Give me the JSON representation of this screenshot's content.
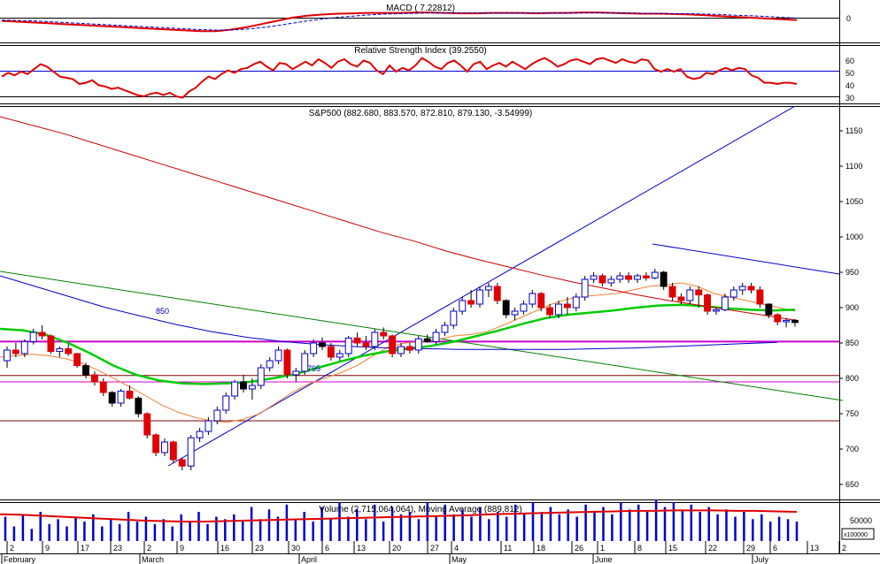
{
  "chart_data": [
    {
      "type": "line",
      "title": "MACD ( 7.22812)",
      "y_ticks": [
        "0"
      ],
      "series": [
        {
          "name": "MACD",
          "color": "#e00000",
          "values": [
            -8,
            -10,
            -12,
            -14,
            -16,
            -18,
            -20,
            -22,
            -24,
            -26,
            -28,
            -30,
            -32,
            -34,
            -34,
            -30,
            -24,
            -16,
            -8,
            0,
            5,
            8,
            10,
            11,
            12,
            12,
            12,
            13,
            13,
            12,
            11,
            11,
            12,
            12,
            12,
            11,
            12,
            12,
            13,
            13,
            12,
            11,
            10,
            10,
            9,
            8,
            6,
            4,
            2,
            0,
            -2,
            -4,
            -6
          ]
        },
        {
          "name": "Signal",
          "color": "#0000cc",
          "dashed": true,
          "values": [
            -6,
            -7,
            -8,
            -10,
            -12,
            -14,
            -16,
            -18,
            -20,
            -22,
            -24,
            -26,
            -28,
            -30,
            -31,
            -31,
            -29,
            -25,
            -20,
            -14,
            -8,
            -3,
            1,
            4,
            7,
            9,
            10,
            11,
            12,
            12,
            12,
            12,
            12,
            12,
            12,
            12,
            12,
            12,
            12,
            12,
            12,
            12,
            11,
            11,
            10,
            10,
            9,
            8,
            6,
            5,
            3,
            1,
            -1
          ]
        }
      ]
    },
    {
      "type": "line",
      "title": "Relative Strength Index (39.2550)",
      "y_ticks": [
        "60",
        "50",
        "40",
        "30"
      ],
      "ylim": [
        25,
        70
      ],
      "reference_lines": [
        50,
        30
      ],
      "series": [
        {
          "name": "RSI",
          "color": "#e00000",
          "values": [
            46,
            49,
            47,
            50,
            48,
            52,
            56,
            54,
            50,
            46,
            45,
            44,
            40,
            41,
            43,
            39,
            38,
            36,
            37,
            35,
            33,
            31,
            30,
            32,
            33,
            31,
            33,
            30,
            29,
            34,
            37,
            42,
            46,
            44,
            48,
            51,
            49,
            52,
            53,
            56,
            58,
            54,
            51,
            57,
            56,
            52,
            55,
            58,
            55,
            60,
            57,
            53,
            58,
            60,
            56,
            54,
            59,
            57,
            51,
            48,
            55,
            50,
            53,
            51,
            55,
            61,
            58,
            54,
            52,
            57,
            59,
            55,
            50,
            56,
            58,
            52,
            55,
            57,
            54,
            58,
            55,
            52,
            56,
            59,
            61,
            58,
            54,
            56,
            59,
            60,
            58,
            56,
            60,
            61,
            59,
            57,
            60,
            58,
            57,
            60,
            59,
            52,
            50,
            52,
            50,
            52,
            46,
            44,
            45,
            49,
            48,
            51,
            53,
            51,
            53,
            52,
            47,
            45,
            41,
            41,
            40,
            41,
            41,
            40
          ]
        }
      ]
    },
    {
      "type": "candlestick",
      "title": "S&P500 (882.680, 883.570, 872.810, 879.130, -3.54999)",
      "ylim": [
        630,
        1205
      ],
      "y_ticks": [
        650,
        700,
        750,
        800,
        850,
        900,
        950,
        1000,
        1050,
        1100,
        1150
      ],
      "annotations": [
        "850",
        "795"
      ],
      "x_tick_labels": [
        "2",
        "9",
        "17",
        "23",
        "2",
        "9",
        "16",
        "23",
        "30",
        "6",
        "13",
        "20",
        "27",
        "4",
        "11",
        "18",
        "26",
        "1",
        "8",
        "15",
        "22",
        "29",
        "6",
        "13",
        "2"
      ],
      "month_labels": [
        "February",
        "March",
        "April",
        "May",
        "June",
        "July"
      ],
      "candles": [
        [
          825,
          845,
          815,
          840
        ],
        [
          840,
          850,
          830,
          835
        ],
        [
          835,
          855,
          830,
          852
        ],
        [
          852,
          870,
          848,
          865
        ],
        [
          865,
          875,
          855,
          860
        ],
        [
          860,
          862,
          835,
          838
        ],
        [
          838,
          845,
          830,
          842
        ],
        [
          842,
          848,
          832,
          835
        ],
        [
          835,
          836,
          815,
          818
        ],
        [
          818,
          822,
          800,
          805
        ],
        [
          805,
          810,
          790,
          795
        ],
        [
          795,
          800,
          775,
          780
        ],
        [
          780,
          782,
          760,
          765
        ],
        [
          765,
          785,
          760,
          782
        ],
        [
          782,
          790,
          770,
          772
        ],
        [
          772,
          775,
          745,
          750
        ],
        [
          750,
          752,
          715,
          720
        ],
        [
          720,
          722,
          690,
          695
        ],
        [
          695,
          715,
          690,
          710
        ],
        [
          710,
          712,
          680,
          685
        ],
        [
          685,
          688,
          670,
          676
        ],
        [
          676,
          720,
          670,
          716
        ],
        [
          716,
          730,
          710,
          725
        ],
        [
          725,
          745,
          720,
          740
        ],
        [
          740,
          760,
          735,
          755
        ],
        [
          755,
          780,
          750,
          775
        ],
        [
          775,
          798,
          770,
          795
        ],
        [
          795,
          805,
          780,
          785
        ],
        [
          785,
          800,
          770,
          790
        ],
        [
          790,
          820,
          785,
          815
        ],
        [
          815,
          830,
          810,
          825
        ],
        [
          825,
          845,
          820,
          840
        ],
        [
          840,
          842,
          800,
          805
        ],
        [
          805,
          815,
          795,
          810
        ],
        [
          810,
          840,
          805,
          835
        ],
        [
          835,
          855,
          830,
          850
        ],
        [
          850,
          858,
          840,
          845
        ],
        [
          845,
          850,
          825,
          830
        ],
        [
          830,
          840,
          825,
          835
        ],
        [
          835,
          860,
          830,
          857
        ],
        [
          857,
          865,
          845,
          850
        ],
        [
          850,
          860,
          840,
          845
        ],
        [
          845,
          870,
          840,
          865
        ],
        [
          865,
          872,
          855,
          860
        ],
        [
          860,
          862,
          830,
          835
        ],
        [
          835,
          850,
          830,
          845
        ],
        [
          845,
          850,
          835,
          840
        ],
        [
          840,
          860,
          835,
          856
        ],
        [
          856,
          862,
          850,
          852
        ],
        [
          852,
          870,
          848,
          865
        ],
        [
          865,
          880,
          860,
          875
        ],
        [
          875,
          900,
          870,
          895
        ],
        [
          895,
          915,
          890,
          910
        ],
        [
          910,
          925,
          900,
          905
        ],
        [
          905,
          930,
          900,
          925
        ],
        [
          925,
          935,
          915,
          930
        ],
        [
          930,
          935,
          905,
          910
        ],
        [
          910,
          912,
          885,
          890
        ],
        [
          890,
          900,
          882,
          895
        ],
        [
          895,
          910,
          890,
          905
        ],
        [
          905,
          925,
          900,
          920
        ],
        [
          920,
          922,
          895,
          900
        ],
        [
          900,
          905,
          885,
          890
        ],
        [
          890,
          910,
          885,
          905
        ],
        [
          905,
          915,
          890,
          900
        ],
        [
          900,
          920,
          895,
          915
        ],
        [
          915,
          945,
          910,
          940
        ],
        [
          940,
          950,
          935,
          945
        ],
        [
          945,
          948,
          930,
          935
        ],
        [
          935,
          945,
          930,
          940
        ],
        [
          940,
          950,
          935,
          945
        ],
        [
          945,
          950,
          935,
          940
        ],
        [
          940,
          948,
          935,
          945
        ],
        [
          945,
          950,
          938,
          942
        ],
        [
          942,
          955,
          940,
          950
        ],
        [
          950,
          952,
          925,
          930
        ],
        [
          930,
          935,
          910,
          915
        ],
        [
          915,
          920,
          905,
          910
        ],
        [
          910,
          930,
          905,
          925
        ],
        [
          925,
          930,
          900,
          918
        ],
        [
          918,
          920,
          890,
          895
        ],
        [
          895,
          900,
          890,
          897
        ],
        [
          897,
          920,
          895,
          915
        ],
        [
          915,
          930,
          910,
          925
        ],
        [
          925,
          935,
          918,
          930
        ],
        [
          930,
          935,
          920,
          925
        ],
        [
          925,
          930,
          900,
          905
        ],
        [
          905,
          906,
          885,
          890
        ],
        [
          890,
          892,
          875,
          880
        ],
        [
          880,
          885,
          872,
          882
        ],
        [
          882,
          884,
          873,
          879
        ]
      ],
      "series": [
        {
          "name": "MA short",
          "color": "#f08030",
          "values": [
            830,
            832,
            834,
            832,
            828,
            822,
            812,
            800,
            788,
            775,
            762,
            752,
            745,
            740,
            738,
            742,
            750,
            765,
            780,
            792,
            800,
            808,
            818,
            832,
            845,
            850,
            852,
            855,
            860,
            862,
            866,
            875,
            885,
            895,
            905,
            912,
            916,
            918,
            920,
            925,
            930,
            932,
            935,
            930,
            920,
            915,
            910,
            905,
            900,
            895
          ]
        },
        {
          "name": "MA medium",
          "color": "#00cc00",
          "values": [
            870,
            868,
            862,
            850,
            835,
            818,
            805,
            797,
            793,
            792,
            793,
            795,
            800,
            806,
            815,
            824,
            832,
            838,
            842,
            846,
            852,
            860,
            868,
            877,
            885,
            890,
            893,
            896,
            900,
            903,
            904,
            902,
            899,
            897,
            896,
            897
          ]
        },
        {
          "name": "MA long",
          "color": "#0000cc",
          "values": [
            945,
            930,
            915,
            900,
            888,
            876,
            866,
            858,
            852,
            848,
            845,
            843,
            842,
            841,
            841,
            841,
            841,
            842,
            843,
            845,
            847,
            849,
            851
          ]
        },
        {
          "name": "MA 200",
          "color": "#cc0000",
          "values": [
            1170,
            1158,
            1146,
            1132,
            1118,
            1104,
            1090,
            1076,
            1062,
            1048,
            1034,
            1020,
            1006,
            994,
            980,
            968,
            957,
            946,
            936,
            927,
            918,
            910,
            903,
            896,
            889,
            882
          ]
        }
      ],
      "horizontal_lines": [
        {
          "value": 852,
          "color": "#cc00cc",
          "width": 2
        },
        {
          "value": 804,
          "color": "#800000"
        },
        {
          "value": 795,
          "color": "#cc00cc"
        },
        {
          "value": 740,
          "color": "#800000"
        }
      ]
    },
    {
      "type": "bar",
      "title": "Volume (2,715,064,064), Moving Average (889,812)",
      "y_ticks": [
        "50000"
      ],
      "unit_box": "x100000",
      "values": [
        50,
        30,
        55,
        25,
        60,
        35,
        45,
        30,
        50,
        40,
        55,
        30,
        45,
        35,
        60,
        40,
        50,
        35,
        45,
        30,
        55,
        40,
        60,
        35,
        50,
        45,
        55,
        40,
        70,
        45,
        65,
        50,
        75,
        45,
        60,
        40,
        70,
        45,
        80,
        50,
        65,
        45,
        75,
        40,
        70,
        55,
        60,
        45,
        80,
        50,
        75,
        55,
        65,
        50,
        70,
        45,
        60,
        50,
        75,
        55,
        80,
        60,
        70,
        55,
        65,
        50,
        75,
        60,
        70,
        55,
        80,
        65,
        75,
        60,
        85,
        70,
        80,
        65,
        75,
        60,
        70,
        55,
        65,
        50,
        60,
        45,
        55,
        40,
        50,
        45,
        40
      ],
      "ma_values": [
        55,
        54,
        52,
        50,
        48,
        46,
        44,
        42,
        41,
        40,
        40,
        41,
        42,
        43,
        44,
        45,
        46,
        47,
        48,
        49,
        50,
        51,
        52,
        53,
        55,
        56,
        57,
        58,
        59,
        60,
        61,
        62,
        62,
        63,
        63,
        63,
        62,
        62,
        61,
        60
      ]
    }
  ]
}
